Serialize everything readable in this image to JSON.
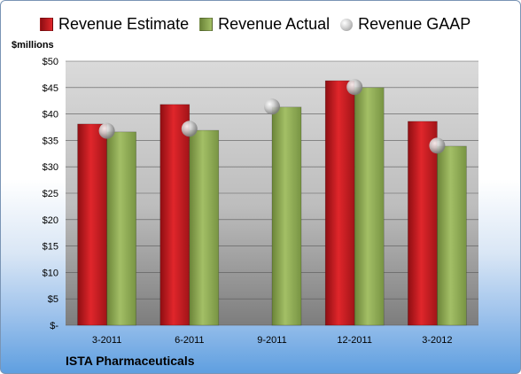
{
  "chart_data": {
    "type": "bar",
    "categories": [
      "3-2011",
      "6-2011",
      "9-2011",
      "12-2011",
      "3-2012"
    ],
    "series": [
      {
        "name": "Revenue Estimate",
        "color": "#c0171c",
        "values": [
          38.1,
          41.8,
          null,
          46.3,
          38.6
        ]
      },
      {
        "name": "Revenue Actual",
        "color": "#8aa54e",
        "values": [
          36.6,
          36.9,
          41.3,
          45.0,
          33.9
        ]
      },
      {
        "name": "Revenue GAAP",
        "color": "#c8c8c8",
        "marker": "sphere",
        "values": [
          36.8,
          37.2,
          41.4,
          45.1,
          34.0
        ]
      }
    ],
    "ylabel": "$millions",
    "ylim": [
      0,
      50
    ],
    "yticks": [
      0,
      5,
      10,
      15,
      20,
      25,
      30,
      35,
      40,
      45,
      50
    ],
    "ytick_labels": [
      "$-",
      "$5",
      "$10",
      "$15",
      "$20",
      "$25",
      "$30",
      "$35",
      "$40",
      "$45",
      "$50"
    ],
    "grid": true,
    "legend_position": "top"
  },
  "company": "ISTA Pharmaceuticals"
}
